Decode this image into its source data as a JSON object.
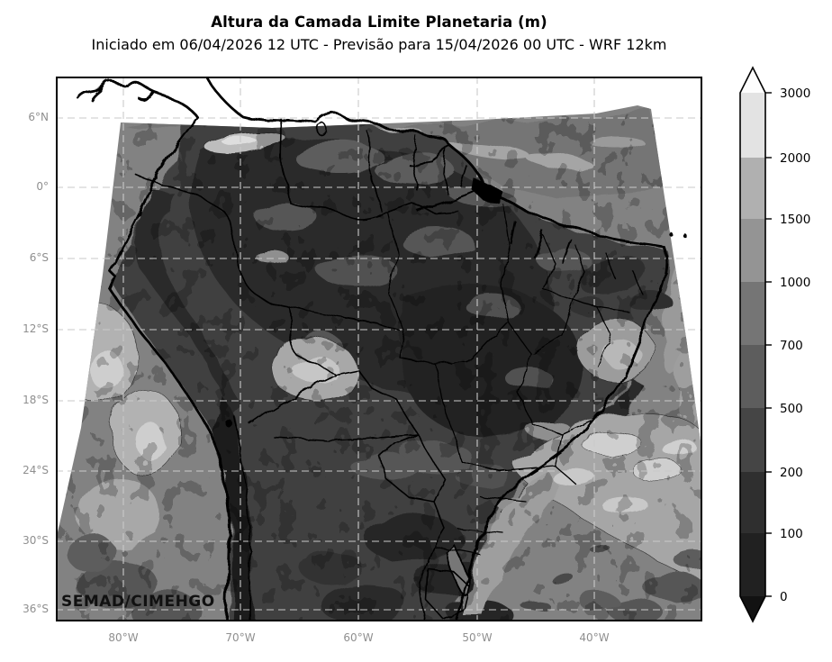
{
  "title": "Altura da Camada Limite Planetaria (m)",
  "subtitle": "Iniciado em 06/04/2026 12 UTC - Previsão para 15/04/2026 00 UTC - WRF 12km",
  "watermark": "SEMAD/CIMEHGO",
  "axes": {
    "lat_tick_labels": [
      "6°N",
      "0°",
      "6°S",
      "12°S",
      "18°S",
      "24°S",
      "30°S",
      "36°S"
    ],
    "lon_tick_labels": [
      "80°W",
      "70°W",
      "60°W",
      "50°W",
      "40°W"
    ]
  },
  "colorbar": {
    "tick_labels": [
      "0",
      "100",
      "200",
      "500",
      "700",
      "1000",
      "1500",
      "2000",
      "3000"
    ],
    "segment_colors": [
      "#212121",
      "#2f2f2f",
      "#454545",
      "#5d5d5d",
      "#757575",
      "#949494",
      "#b0b0b0",
      "#e3e3e3"
    ],
    "under_arrow_color": "#121212",
    "over_arrow_color": "#fdfdfd"
  },
  "chart_data": {
    "type": "heatmap",
    "title": "Altura da Camada Limite Planetaria (m)",
    "subtitle": "Iniciado em 06/04/2026 12 UTC - Previsão para 15/04/2026 00 UTC - WRF 12km",
    "unit": "m",
    "contour_levels": [
      0,
      100,
      200,
      500,
      700,
      1000,
      1500,
      2000,
      3000
    ],
    "colormap": "grayscale, dark = low, light = high, arrows for under 0 / over 3000",
    "x_ticks": [
      "80°W",
      "70°W",
      "60°W",
      "50°W",
      "40°W"
    ],
    "y_ticks": [
      "6°N",
      "0°",
      "6°S",
      "12°S",
      "18°S",
      "24°S",
      "30°S",
      "36°S"
    ],
    "legend_position": "right",
    "region": "South America model domain, low values over continental interior, higher values over adjacent oceans"
  }
}
